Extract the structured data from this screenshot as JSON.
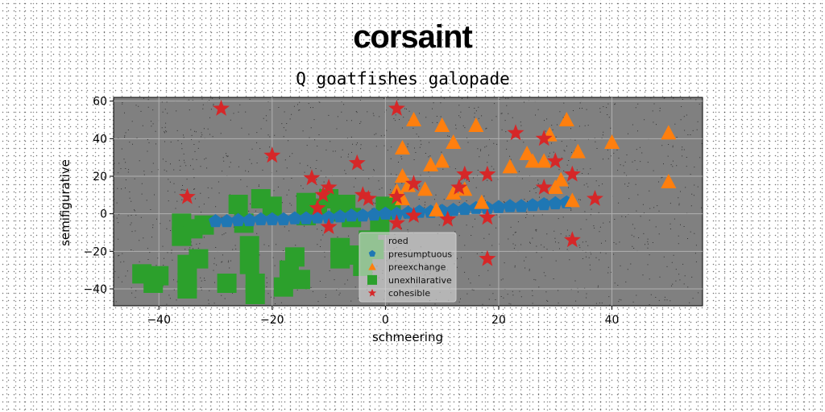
{
  "chart_data": {
    "type": "scatter",
    "title": "corsaint",
    "subtitle": "Q goatfishes galopade",
    "xlabel": "schmeering",
    "ylabel": "semifigurative",
    "xlim": [
      -48,
      56
    ],
    "ylim": [
      -49,
      62
    ],
    "xticks": [
      -40,
      -20,
      0,
      20,
      40
    ],
    "yticks": [
      -40,
      -20,
      0,
      20,
      40,
      60
    ],
    "grid": true,
    "plot_background": "#808080",
    "legend_position": "lower-center",
    "series": [
      {
        "name": "roed",
        "marker": "none",
        "color": "#d62728",
        "points": []
      },
      {
        "name": "presumptuous",
        "marker": "pentagon",
        "color": "#1f77b4",
        "points": [
          [
            -30,
            -4
          ],
          [
            -28,
            -4
          ],
          [
            -26,
            -3.5
          ],
          [
            -24,
            -3.5
          ],
          [
            -22,
            -3
          ],
          [
            -20,
            -3
          ],
          [
            -18,
            -3
          ],
          [
            -16,
            -2.5
          ],
          [
            -14,
            -2.5
          ],
          [
            -12,
            -2
          ],
          [
            -10,
            -2
          ],
          [
            -8,
            -1.5
          ],
          [
            -6,
            -1
          ],
          [
            -4,
            -1
          ],
          [
            -2,
            -0.5
          ],
          [
            0,
            0
          ],
          [
            2,
            0
          ],
          [
            4,
            0.5
          ],
          [
            6,
            1
          ],
          [
            8,
            1
          ],
          [
            10,
            1.5
          ],
          [
            12,
            2
          ],
          [
            14,
            2.5
          ],
          [
            16,
            3
          ],
          [
            18,
            3
          ],
          [
            20,
            3.5
          ],
          [
            22,
            4
          ],
          [
            24,
            4
          ],
          [
            26,
            4.5
          ],
          [
            28,
            5
          ],
          [
            30,
            5.5
          ],
          [
            32,
            6
          ]
        ]
      },
      {
        "name": "preexchange",
        "marker": "triangle",
        "color": "#ff7f0e",
        "points": [
          [
            3,
            35
          ],
          [
            3,
            20
          ],
          [
            2,
            12
          ],
          [
            4,
            15
          ],
          [
            3,
            8
          ],
          [
            5,
            50
          ],
          [
            7,
            13
          ],
          [
            8,
            26
          ],
          [
            10,
            47
          ],
          [
            10,
            28
          ],
          [
            12,
            38
          ],
          [
            12,
            11
          ],
          [
            14,
            13
          ],
          [
            16,
            47
          ],
          [
            17,
            6
          ],
          [
            22,
            25
          ],
          [
            25,
            32
          ],
          [
            26,
            28
          ],
          [
            28,
            28
          ],
          [
            29,
            42
          ],
          [
            30,
            14
          ],
          [
            31,
            18
          ],
          [
            32,
            50
          ],
          [
            33,
            7
          ],
          [
            34,
            33
          ],
          [
            40,
            38
          ],
          [
            50,
            43
          ],
          [
            50,
            17
          ],
          [
            9,
            2
          ]
        ]
      },
      {
        "name": "unexhilarative",
        "marker": "square",
        "color": "#2ca02c",
        "points": [
          [
            -43,
            -32
          ],
          [
            -41,
            -37
          ],
          [
            -40,
            -33
          ],
          [
            -36,
            -5
          ],
          [
            -36,
            -12
          ],
          [
            -35,
            -27
          ],
          [
            -35,
            -37
          ],
          [
            -35,
            -40
          ],
          [
            -34,
            -8
          ],
          [
            -33,
            -24
          ],
          [
            -32,
            -6
          ],
          [
            -28,
            -37
          ],
          [
            -26,
            5
          ],
          [
            -25,
            -5
          ],
          [
            -24,
            -27
          ],
          [
            -24,
            -17
          ],
          [
            -23,
            -37
          ],
          [
            -23,
            -43
          ],
          [
            -22,
            8
          ],
          [
            -20,
            4
          ],
          [
            -18,
            -39
          ],
          [
            -17,
            -30
          ],
          [
            -16,
            -23
          ],
          [
            -15,
            -35
          ],
          [
            -14,
            6
          ],
          [
            -14,
            -1
          ],
          [
            -12,
            3
          ],
          [
            -10,
            8
          ],
          [
            -8,
            1
          ],
          [
            -8,
            -18
          ],
          [
            -8,
            -24
          ],
          [
            -6,
            -2
          ],
          [
            -5,
            -22
          ],
          [
            -4,
            -28
          ],
          [
            -3,
            -14
          ],
          [
            -2,
            -19
          ],
          [
            -1,
            -6
          ],
          [
            0,
            4
          ],
          [
            1,
            2
          ],
          [
            -7,
            5
          ]
        ]
      },
      {
        "name": "cohesible",
        "marker": "star",
        "color": "#d62728",
        "points": [
          [
            -29,
            56
          ],
          [
            -20,
            31
          ],
          [
            -35,
            9
          ],
          [
            -13,
            19
          ],
          [
            -12,
            3
          ],
          [
            -11,
            10
          ],
          [
            -10,
            14
          ],
          [
            -10,
            -7
          ],
          [
            -5,
            27
          ],
          [
            -4,
            10
          ],
          [
            -3,
            8
          ],
          [
            2,
            56
          ],
          [
            2,
            -5
          ],
          [
            5,
            16
          ],
          [
            5,
            -1
          ],
          [
            11,
            -3
          ],
          [
            13,
            14
          ],
          [
            14,
            21
          ],
          [
            18,
            21
          ],
          [
            18,
            -2
          ],
          [
            18,
            -24
          ],
          [
            23,
            43
          ],
          [
            28,
            40
          ],
          [
            28,
            14
          ],
          [
            30,
            28
          ],
          [
            33,
            21
          ],
          [
            33,
            -14
          ],
          [
            37,
            8
          ],
          [
            2,
            9
          ]
        ]
      }
    ]
  }
}
